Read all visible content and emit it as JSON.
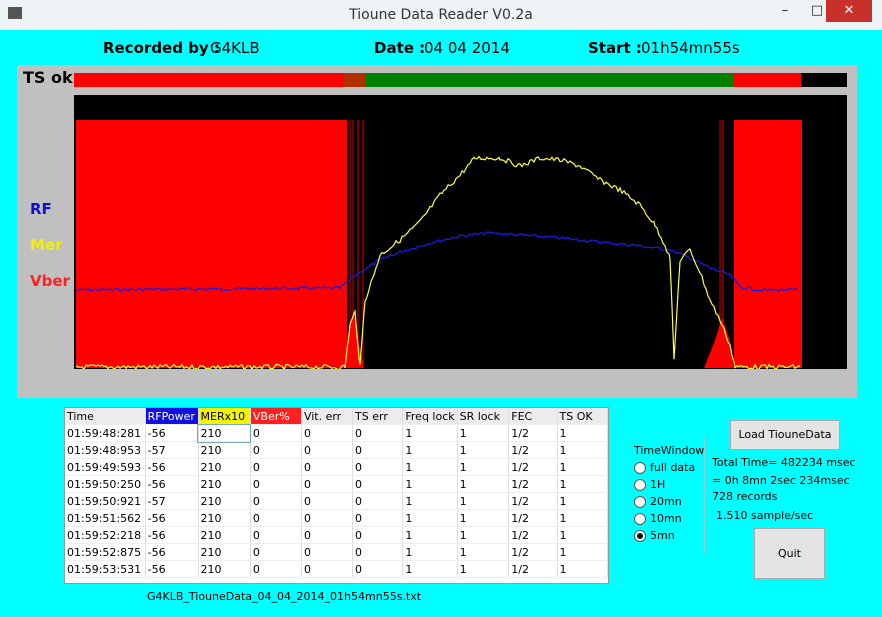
{
  "window": {
    "title": "Tioune Data Reader V0.2a"
  },
  "header": {
    "recorded_by_label": "Recorded by :",
    "recorded_by": "G4KLB",
    "date_label": "Date :",
    "date": "04 04 2014",
    "start_label": "Start :",
    "start": "01h54mn55s"
  },
  "graph": {
    "ts_label": "TS ok",
    "legend": [
      "RF",
      "Mer",
      "Vber"
    ]
  },
  "table": {
    "columns": [
      "Time",
      "RFPower",
      "MERx10",
      "VBer%",
      "Vit. err",
      "TS err",
      "Freq lock",
      "SR lock",
      "FEC",
      "TS OK"
    ],
    "rows": [
      [
        "01:59:48:281",
        -56,
        210,
        0,
        0,
        0,
        1,
        1,
        "1/2",
        1
      ],
      [
        "01:59:48:953",
        -57,
        210,
        0,
        0,
        0,
        1,
        1,
        "1/2",
        1
      ],
      [
        "01:59:49:593",
        -56,
        210,
        0,
        0,
        0,
        1,
        1,
        "1/2",
        1
      ],
      [
        "01:59:50:250",
        -56,
        210,
        0,
        0,
        0,
        1,
        1,
        "1/2",
        1
      ],
      [
        "01:59:50:921",
        -57,
        210,
        0,
        0,
        0,
        1,
        1,
        "1/2",
        1
      ],
      [
        "01:59:51:562",
        -56,
        210,
        0,
        0,
        0,
        1,
        1,
        "1/2",
        1
      ],
      [
        "01:59:52:218",
        -56,
        210,
        0,
        0,
        0,
        1,
        1,
        "1/2",
        1
      ],
      [
        "01:59:52:875",
        -56,
        210,
        0,
        0,
        0,
        1,
        1,
        "1/2",
        1
      ],
      [
        "01:59:53:531",
        -56,
        210,
        0,
        0,
        0,
        1,
        1,
        "1/2",
        1
      ]
    ]
  },
  "time_window": {
    "title": "TimeWindow",
    "options": [
      "full data",
      "1H",
      "20mn",
      "10mn",
      "5mn"
    ],
    "selected": 4
  },
  "load_button": "Load TiouneData",
  "stats": [
    "Total Time= 482234 msec",
    "= 0h 8mn 2sec 234msec",
    "728 records",
    "1.510 sample/sec"
  ],
  "quit_button": "Quit",
  "filename": "G4KLB_TiouneData_04_04_2014_01h54mn55s.txt"
}
